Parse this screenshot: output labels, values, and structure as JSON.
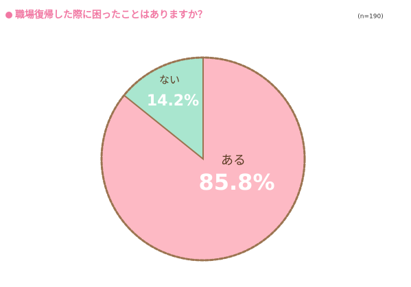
{
  "chart_data": {
    "type": "pie",
    "title": "職場復帰した際に困ったことはありますか？",
    "subtitle": "(n=190)",
    "categories": [
      "ある",
      "ない"
    ],
    "values": [
      85.8,
      14.2
    ],
    "value_labels": [
      "85.8%",
      "14.2%"
    ],
    "colors": [
      "#fdb9c4",
      "#a9e6cf"
    ],
    "start_angle": 0,
    "direction": "clockwise"
  }
}
